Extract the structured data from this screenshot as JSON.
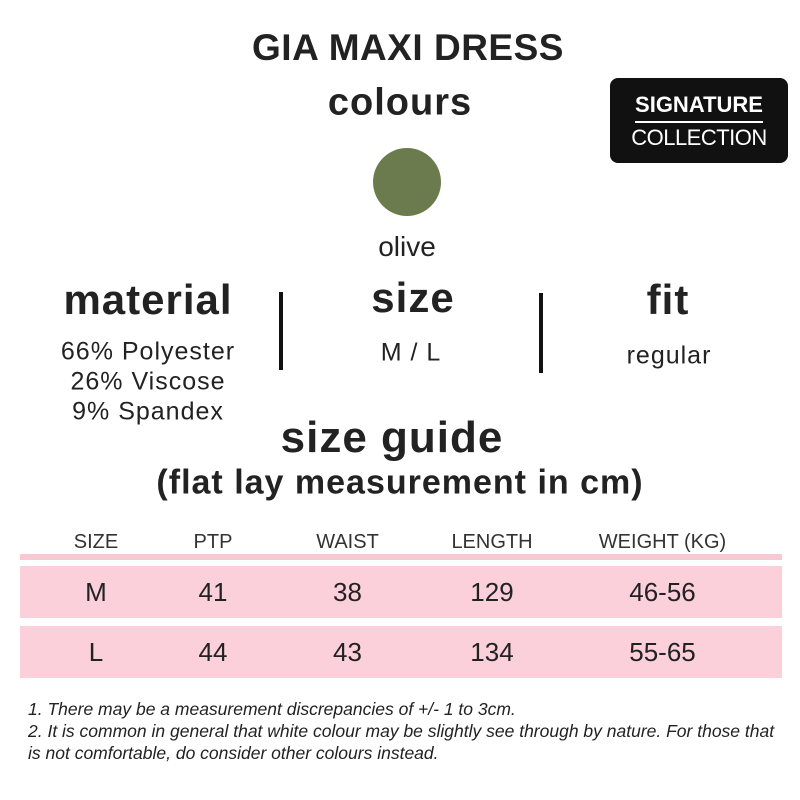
{
  "header": {
    "title": "GIA MAXI DRESS",
    "subtitle": "colours"
  },
  "badge": {
    "line1": "SIGNATURE",
    "line2": "COLLECTION"
  },
  "colours": {
    "items": [
      "olive"
    ]
  },
  "material": {
    "heading": "material",
    "lines": [
      "66% Polyester",
      "26% Viscose",
      "9% Spandex"
    ]
  },
  "size": {
    "heading": "size",
    "value": "M / L"
  },
  "fit": {
    "heading": "fit",
    "value": "regular"
  },
  "size_guide": {
    "title": "size guide",
    "subtitle": "(flat lay measurement in cm)"
  },
  "table": {
    "headers": [
      "SIZE",
      "PTP",
      "WAIST",
      "LENGTH",
      "WEIGHT (KG)"
    ],
    "rows": [
      [
        "M",
        41,
        38,
        129,
        "46-56"
      ],
      [
        "L",
        44,
        43,
        134,
        "55-65"
      ]
    ]
  },
  "notes": [
    "1.  There may be a measurement discrepancies of +/- 1 to 3cm.",
    "2. It is common in general that white colour may be slightly see through by nature. For those that is not comfortable, do consider other colours instead."
  ]
}
